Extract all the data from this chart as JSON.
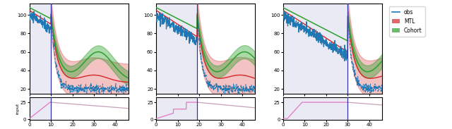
{
  "vline_positions": [
    10,
    19,
    30
  ],
  "x_max": 46,
  "obs_color": "#1f77b4",
  "mtl_color": "#d62728",
  "cohort_color": "#2ca02c",
  "input_color_bright": "#e377c2",
  "input_color_faint": "#c8a0b8",
  "bg_shaded": "#eaeaf4",
  "ylim_main": [
    15,
    112
  ],
  "ylim_input": [
    -1,
    32
  ],
  "yticks_main": [
    20,
    40,
    60,
    80,
    100
  ],
  "yticks_input": [
    0,
    25
  ],
  "panel1_vline": 10,
  "panel2_vline": 19,
  "panel3_vline": 30
}
